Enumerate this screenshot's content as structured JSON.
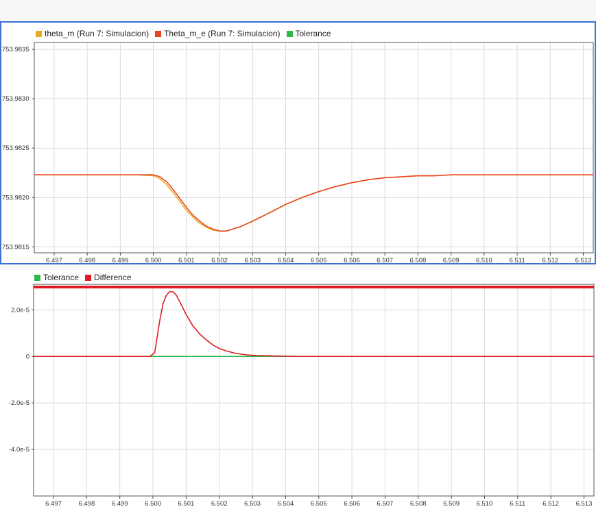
{
  "top_panel": {
    "legend": [
      {
        "label": "theta_m (Run 7: Simulacion)",
        "color": "#e8a823"
      },
      {
        "label": "Theta_m_e (Run 7: Simulacion)",
        "color": "#e8461f"
      },
      {
        "label": "Tolerance",
        "color": "#2db84a"
      }
    ]
  },
  "bottom_panel": {
    "legend": [
      {
        "label": "Tolerance",
        "color": "#2db84a"
      },
      {
        "label": "Difference",
        "color": "#e01b24"
      }
    ]
  },
  "chart_data": [
    {
      "type": "line",
      "title": "",
      "xlabel": "",
      "ylabel": "",
      "xlim": [
        6.4964,
        6.5133
      ],
      "ylim": [
        753.98144,
        753.98357
      ],
      "grid": true,
      "legend_position": "top-left",
      "x_ticks": [
        6.497,
        6.498,
        6.499,
        6.5,
        6.501,
        6.502,
        6.503,
        6.504,
        6.505,
        6.506,
        6.507,
        6.508,
        6.509,
        6.51,
        6.511,
        6.512,
        6.513
      ],
      "x_tick_labels": [
        "6.497",
        "6.498",
        "6.499",
        "6.500",
        "6.501",
        "6.502",
        "6.503",
        "6.504",
        "6.505",
        "6.506",
        "6.507",
        "6.508",
        "6.509",
        "6.510",
        "6.511",
        "6.512",
        "6.513"
      ],
      "y_ticks": [
        753.9815,
        753.982,
        753.9825,
        753.983,
        753.9835
      ],
      "y_tick_labels": [
        "753.9815",
        "753.9820",
        "753.9825",
        "753.9830",
        "753.9835"
      ],
      "series": [
        {
          "name": "theta_m (Run 7: Simulacion)",
          "color": "#e8a823",
          "x": [
            6.4964,
            6.4995,
            6.5,
            6.5002,
            6.5004,
            6.5006,
            6.5008,
            6.501,
            6.5012,
            6.5014,
            6.5016,
            6.5018,
            6.502,
            6.5022,
            6.5024,
            6.5026,
            6.5028,
            6.503,
            6.5033,
            6.5036,
            6.504,
            6.5045,
            6.505,
            6.5055,
            6.506,
            6.5065,
            6.507,
            6.5075,
            6.508,
            6.5085,
            6.509,
            6.5133
          ],
          "values": [
            753.98223,
            753.98223,
            753.98222,
            753.98219,
            753.98213,
            753.98205,
            753.98196,
            753.98187,
            753.9818,
            753.98174,
            753.9817,
            753.98167,
            753.98166,
            753.98166,
            753.98168,
            753.9817,
            753.98173,
            753.98176,
            753.98181,
            753.98186,
            753.98193,
            753.982,
            753.98206,
            753.98211,
            753.98215,
            753.98218,
            753.9822,
            753.98221,
            753.98222,
            753.98222,
            753.98223,
            753.98223
          ]
        },
        {
          "name": "Theta_m_e (Run 7: Simulacion)",
          "color": "#e8461f",
          "x": [
            6.4964,
            6.4995,
            6.5,
            6.5002,
            6.5004,
            6.5006,
            6.5008,
            6.501,
            6.5012,
            6.5014,
            6.5016,
            6.5018,
            6.502,
            6.5022,
            6.5024,
            6.5026,
            6.5028,
            6.503,
            6.5033,
            6.5036,
            6.504,
            6.5045,
            6.505,
            6.5055,
            6.506,
            6.5065,
            6.507,
            6.5075,
            6.508,
            6.5085,
            6.509,
            6.5133
          ],
          "values": [
            753.98223,
            753.98223,
            753.98223,
            753.98221,
            753.98216,
            753.98208,
            753.98199,
            753.9819,
            753.98182,
            753.98176,
            753.98171,
            753.98168,
            753.98166,
            753.98166,
            753.98168,
            753.9817,
            753.98173,
            753.98176,
            753.98181,
            753.98186,
            753.98193,
            753.982,
            753.98206,
            753.98211,
            753.98215,
            753.98218,
            753.9822,
            753.98221,
            753.98222,
            753.98222,
            753.98223,
            753.98223
          ]
        },
        {
          "name": "Tolerance",
          "color": "#2db84a",
          "x": [],
          "values": []
        }
      ]
    },
    {
      "type": "line",
      "title": "",
      "xlabel": "",
      "ylabel": "",
      "xlim": [
        6.4964,
        6.5133
      ],
      "ylim": [
        -6e-05,
        3.1e-05
      ],
      "grid": true,
      "legend_position": "top-left",
      "x_ticks": [
        6.497,
        6.498,
        6.499,
        6.5,
        6.501,
        6.502,
        6.503,
        6.504,
        6.505,
        6.506,
        6.507,
        6.508,
        6.509,
        6.51,
        6.511,
        6.512,
        6.513
      ],
      "x_tick_labels": [
        "6.497",
        "6.498",
        "6.499",
        "6.500",
        "6.501",
        "6.502",
        "6.503",
        "6.504",
        "6.505",
        "6.506",
        "6.507",
        "6.508",
        "6.509",
        "6.510",
        "6.511",
        "6.512",
        "6.513"
      ],
      "y_ticks": [
        2e-05,
        0,
        -2e-05,
        -4e-05
      ],
      "y_tick_labels": [
        "2.0e-5",
        "0",
        "-2.0e-5",
        "-4.0e-5"
      ],
      "series": [
        {
          "name": "Tolerance",
          "color": "#2db84a",
          "x": [
            6.4964,
            6.5133
          ],
          "values": [
            0,
            0
          ]
        },
        {
          "name": "Difference",
          "color": "#e01b24",
          "x": [
            6.4964,
            6.4999,
            6.50005,
            6.5001,
            6.5002,
            6.5003,
            6.5004,
            6.5005,
            6.5006,
            6.5007,
            6.5008,
            6.501,
            6.5012,
            6.5014,
            6.5016,
            6.5018,
            6.502,
            6.5022,
            6.5025,
            6.5028,
            6.5031,
            6.5036,
            6.5045,
            6.5133
          ],
          "values": [
            0,
            0,
            1.5e-06,
            6e-06,
            1.5e-05,
            2.25e-05,
            2.62e-05,
            2.78e-05,
            2.78e-05,
            2.64e-05,
            2.38e-05,
            1.8e-05,
            1.32e-05,
            9.8e-06,
            7.2e-06,
            5e-06,
            3.4e-06,
            2.4e-06,
            1.3e-06,
            7e-07,
            4e-07,
            2e-07,
            0,
            0
          ]
        }
      ]
    }
  ]
}
